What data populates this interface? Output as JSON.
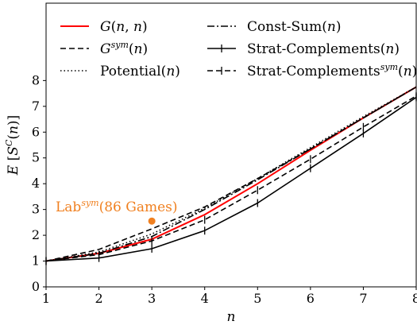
{
  "chart_data": {
    "type": "line",
    "xlabel": "n",
    "ylabel": "E [S^C(n)]",
    "xlim": [
      1,
      8
    ],
    "ylim": [
      0,
      11
    ],
    "xticks": [
      1,
      2,
      3,
      4,
      5,
      6,
      7,
      8
    ],
    "yticks": [
      0,
      1,
      2,
      3,
      4,
      5,
      6,
      7,
      8
    ],
    "grid": false,
    "legend_position": "top",
    "x": [
      1,
      2,
      3,
      4,
      5,
      6,
      7,
      8
    ],
    "series": [
      {
        "name": "G(n, n)",
        "values": [
          1.0,
          1.3,
          1.85,
          2.8,
          4.0,
          5.3,
          6.55,
          7.75
        ],
        "color": "#ff0000",
        "dash": "solid",
        "marker": "none"
      },
      {
        "name": "Gsym(n)",
        "values": [
          1.0,
          1.45,
          2.25,
          3.1,
          4.2,
          5.35,
          6.55,
          7.75
        ],
        "color": "#000000",
        "dash": "dashed",
        "marker": "none"
      },
      {
        "name": "Potential(n)",
        "values": [
          1.0,
          1.35,
          2.05,
          3.05,
          4.2,
          5.4,
          6.6,
          7.75
        ],
        "color": "#000000",
        "dash": "dotted",
        "marker": "none"
      },
      {
        "name": "Const-Sum(n)",
        "values": [
          1.0,
          1.3,
          1.95,
          3.0,
          4.15,
          5.35,
          6.55,
          7.75
        ],
        "color": "#000000",
        "dash": "dashdot",
        "marker": "none"
      },
      {
        "name": "Strat-Complements(n)",
        "values": [
          1.0,
          1.12,
          1.48,
          2.18,
          3.25,
          4.6,
          5.95,
          7.35
        ],
        "color": "#000000",
        "dash": "solid",
        "marker": "vtick"
      },
      {
        "name": "Strat-Complementssym(n)",
        "values": [
          1.0,
          1.25,
          1.78,
          2.6,
          3.75,
          4.95,
          6.2,
          7.4
        ],
        "color": "#000000",
        "dash": "dashed",
        "marker": "vtick"
      }
    ],
    "annotation": {
      "x": 3,
      "y": 2.55,
      "color": "#f08020"
    },
    "legend": {
      "col1": [
        {
          "name": "G(n, n)",
          "style": "solid",
          "color": "#ff0000"
        },
        {
          "name": "Gsym(n)",
          "style": "dashed",
          "color": "#000000"
        },
        {
          "name": "Potential(n)",
          "style": "dotted",
          "color": "#000000"
        }
      ],
      "col2": [
        {
          "name": "Const-Sum(n)",
          "style": "dashdot",
          "color": "#000000"
        },
        {
          "name": "Strat-Complements(n)",
          "style": "solid-tick",
          "color": "#000000"
        },
        {
          "name": "Strat-Complementssym(n)",
          "style": "dashed-tick",
          "color": "#000000"
        }
      ]
    }
  }
}
